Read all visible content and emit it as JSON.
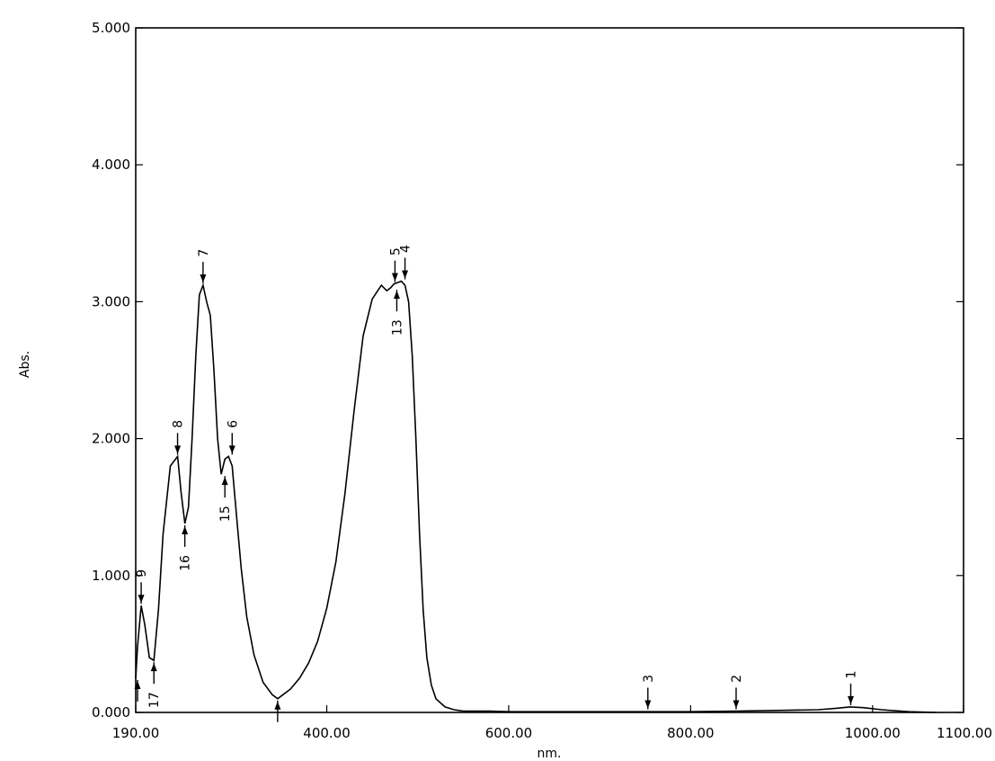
{
  "chart_data": {
    "type": "line",
    "xlabel": "nm.",
    "ylabel": "Abs.",
    "xlim": [
      190,
      1100
    ],
    "ylim": [
      0,
      5
    ],
    "x_ticks": [
      190,
      400,
      600,
      800,
      1000,
      1100
    ],
    "x_tick_labels": [
      "190.00",
      "400.00",
      "600.00",
      "800.00",
      "1000.00",
      "1100.00"
    ],
    "y_ticks": [
      0,
      1,
      2,
      3,
      4,
      5
    ],
    "y_tick_labels": [
      "0.000",
      "1.000",
      "2.000",
      "3.000",
      "4.000",
      "5.000"
    ],
    "grid": false,
    "legend": "none",
    "series": [
      {
        "x": [
          190,
          192,
          196,
          200,
          205,
          210,
          215,
          220,
          228,
          236,
          240,
          244,
          248,
          252,
          256,
          260,
          264,
          268,
          272,
          276,
          280,
          284,
          288,
          292,
          296,
          300,
          306,
          312,
          320,
          330,
          340,
          346,
          352,
          360,
          370,
          380,
          390,
          400,
          410,
          420,
          430,
          440,
          450,
          460,
          466,
          470,
          474,
          478,
          482,
          486,
          490,
          494,
          498,
          502,
          506,
          510,
          515,
          520,
          530,
          540,
          550,
          560,
          580,
          600,
          650,
          700,
          750,
          800,
          850,
          900,
          940,
          960,
          975,
          990,
          1010,
          1040,
          1070
        ],
        "y": [
          0.25,
          0.48,
          0.78,
          0.64,
          0.4,
          0.38,
          0.75,
          1.3,
          1.8,
          1.87,
          1.6,
          1.38,
          1.5,
          2.0,
          2.6,
          3.05,
          3.12,
          3.0,
          2.9,
          2.5,
          2.0,
          1.74,
          1.85,
          1.87,
          1.8,
          1.5,
          1.05,
          0.7,
          0.42,
          0.22,
          0.13,
          0.1,
          0.13,
          0.17,
          0.25,
          0.36,
          0.52,
          0.76,
          1.1,
          1.6,
          2.2,
          2.75,
          3.02,
          3.12,
          3.08,
          3.1,
          3.13,
          3.14,
          3.15,
          3.12,
          3.0,
          2.6,
          2.0,
          1.3,
          0.75,
          0.4,
          0.2,
          0.1,
          0.04,
          0.02,
          0.01,
          0.01,
          0.01,
          0.005,
          0.005,
          0.005,
          0.005,
          0.005,
          0.01,
          0.015,
          0.02,
          0.03,
          0.04,
          0.035,
          0.02,
          0.005,
          0.0
        ]
      }
    ],
    "color": "#000000",
    "annotations": [
      {
        "label": "1",
        "x": 976,
        "y": 0.04,
        "pos": "above"
      },
      {
        "label": "2",
        "x": 850,
        "y": 0.01,
        "pos": "above"
      },
      {
        "label": "3",
        "x": 753,
        "y": 0.01,
        "pos": "above"
      },
      {
        "label": "4",
        "x": 486,
        "y": 3.15,
        "pos": "above"
      },
      {
        "label": "5",
        "x": 475,
        "y": 3.13,
        "pos": "above"
      },
      {
        "label": "6",
        "x": 296,
        "y": 1.87,
        "pos": "above"
      },
      {
        "label": "7",
        "x": 264,
        "y": 3.12,
        "pos": "above"
      },
      {
        "label": "8",
        "x": 236,
        "y": 1.87,
        "pos": "above"
      },
      {
        "label": "9",
        "x": 196,
        "y": 0.78,
        "pos": "above"
      },
      {
        "label": "",
        "x": 346,
        "y": 0.1,
        "pos": "below"
      },
      {
        "label": "13",
        "x": 477,
        "y": 3.1,
        "pos": "below"
      },
      {
        "label": "15",
        "x": 288,
        "y": 1.74,
        "pos": "below"
      },
      {
        "label": "16",
        "x": 244,
        "y": 1.38,
        "pos": "below"
      },
      {
        "label": "17",
        "x": 210,
        "y": 0.38,
        "pos": "below"
      },
      {
        "label": "",
        "x": 192,
        "y": 0.25,
        "pos": "below"
      }
    ]
  }
}
